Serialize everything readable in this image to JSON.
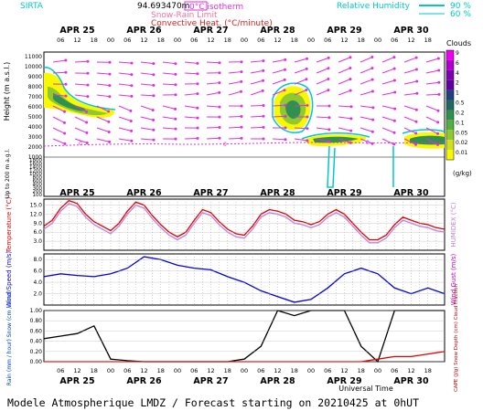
{
  "header": {
    "site": "SIRTA",
    "coords": "94.693470m",
    "legend_isotherm": "0°C isotherm",
    "legend_snow_rain": "Snow-Rain Limit",
    "legend_convective": "Convective Heat. (°C/minute)",
    "legend_rh": "Relative Humidity",
    "rh_90": "90 %",
    "rh_60": "60 %"
  },
  "days": [
    "APR 25",
    "APR 26",
    "APR 27",
    "APR 28",
    "APR 29",
    "APR 30"
  ],
  "hour_ticks": [
    "06",
    "12",
    "18",
    "00"
  ],
  "clouds_panel": {
    "ylabel": "Height (m a.s.l.)",
    "ylabel_sub": "Up to 200 m a.g.l.",
    "yticks_upper": [
      "11000",
      "10000",
      "9000",
      "8000",
      "7000",
      "6000",
      "5000",
      "4000",
      "3000",
      "2000",
      "1000"
    ],
    "yticks_lower": [
      "1800",
      "1600",
      "1400",
      "1200",
      "1000",
      "800",
      "600",
      "400",
      "300",
      "200",
      "100"
    ],
    "colorbar_title": "Clouds",
    "colorbar_ticks": [
      "9",
      "6",
      "4",
      "2",
      "1",
      "0.5",
      "0.2",
      "0.1",
      "0.05",
      "0.02",
      "0.01"
    ],
    "colorbar_colors": [
      "#f000f0",
      "#b000d0",
      "#8000b0",
      "#6000a0",
      "#204080",
      "#206860",
      "#309050",
      "#50b040",
      "#90c830",
      "#d0e020",
      "#f8f800"
    ],
    "colorbar_units": "(g/kg)"
  },
  "chart_data": [
    {
      "type": "line",
      "title": "",
      "ylabel": "Temperature (°C)",
      "ylabel_right": "HUMIDEX (°C)",
      "yticks": [
        "15.0",
        "12.0",
        "9.0",
        "6.0",
        "3.0"
      ],
      "ylim": [
        0,
        17
      ],
      "x_hours": [
        0,
        3,
        6,
        9,
        12,
        15,
        18,
        21,
        24,
        27,
        30,
        33,
        36,
        39,
        42,
        45,
        48,
        51,
        54,
        57,
        60,
        63,
        66,
        69,
        72,
        75,
        78,
        81,
        84,
        87,
        90,
        93,
        96,
        99,
        102,
        105,
        108,
        111,
        114,
        117,
        120,
        123,
        126,
        129,
        132,
        135,
        138,
        141,
        144
      ],
      "series": [
        {
          "color": "#e00000",
          "values": [
            8.0,
            10.0,
            14.0,
            16.5,
            15.5,
            12.0,
            9.5,
            8.0,
            6.5,
            9.0,
            13.0,
            16.0,
            15.0,
            11.5,
            8.5,
            6.0,
            4.5,
            6.0,
            10.0,
            13.5,
            12.5,
            9.5,
            7.0,
            5.5,
            5.0,
            8.0,
            12.0,
            13.5,
            13.0,
            12.0,
            10.0,
            9.5,
            8.5,
            9.5,
            12.0,
            13.5,
            12.0,
            9.0,
            6.0,
            3.5,
            3.5,
            5.0,
            8.5,
            11.0,
            10.0,
            9.0,
            8.5,
            7.5,
            7.0
          ]
        },
        {
          "color": "#c080e0",
          "values": [
            7.0,
            9.0,
            13.0,
            15.5,
            14.5,
            11.0,
            8.5,
            7.0,
            5.5,
            8.0,
            12.0,
            15.0,
            14.0,
            10.5,
            7.5,
            5.0,
            3.5,
            5.0,
            9.0,
            12.5,
            11.5,
            8.5,
            6.0,
            4.5,
            4.0,
            7.0,
            11.0,
            12.5,
            12.0,
            11.0,
            9.0,
            8.5,
            7.5,
            8.5,
            11.0,
            12.5,
            11.0,
            8.0,
            5.0,
            2.5,
            2.5,
            4.0,
            7.5,
            10.0,
            9.0,
            8.0,
            7.5,
            6.5,
            6.0
          ]
        }
      ]
    },
    {
      "type": "line",
      "title": "",
      "ylabel": "Wind Speed (m/s)",
      "ylabel_right": "Wind Gust (m/s)",
      "yticks": [
        "8.0",
        "6.0",
        "4.0",
        "2.0"
      ],
      "ylim": [
        0,
        9
      ],
      "x_hours": [
        0,
        6,
        12,
        18,
        24,
        30,
        36,
        42,
        48,
        54,
        60,
        66,
        72,
        78,
        84,
        90,
        96,
        102,
        108,
        114,
        120,
        126,
        132,
        138,
        144
      ],
      "series": [
        {
          "color": "#0000e0",
          "values": [
            5.0,
            5.5,
            5.2,
            5.0,
            5.5,
            6.5,
            8.5,
            8.0,
            7.0,
            6.5,
            6.2,
            5.0,
            4.0,
            2.5,
            1.5,
            0.5,
            1.0,
            3.0,
            5.5,
            6.5,
            5.5,
            3.0,
            2.0,
            3.0,
            2.0
          ]
        }
      ]
    },
    {
      "type": "line",
      "title": "",
      "ylabel": "Rain (mm / hour) Snow (cm / hour)",
      "ylabel_right": "CAPE (J/g) Snow Depth (cm) Cloud Fraction",
      "yticks": [
        "1.00",
        "0.80",
        "0.60",
        "0.40",
        "0.20",
        "0.00"
      ],
      "ylim": [
        0,
        1.0
      ],
      "x_hours": [
        0,
        6,
        12,
        18,
        24,
        30,
        36,
        42,
        48,
        54,
        60,
        66,
        72,
        78,
        84,
        90,
        96,
        102,
        108,
        114,
        120,
        126,
        132,
        138,
        144
      ],
      "series": [
        {
          "color": "#000000",
          "values": [
            0.45,
            0.5,
            0.55,
            0.7,
            0.05,
            0.02,
            0.0,
            0.0,
            0.0,
            0.0,
            0.0,
            0.0,
            0.05,
            0.3,
            1.0,
            0.9,
            1.0,
            1.0,
            1.0,
            0.3,
            0.0,
            1.0,
            1.0,
            1.0,
            1.0
          ]
        },
        {
          "color": "#e00000",
          "values": [
            0,
            0,
            0,
            0,
            0,
            0,
            0,
            0,
            0,
            0,
            0,
            0,
            0,
            0,
            0,
            0,
            0,
            0,
            0,
            0,
            0.05,
            0.1,
            0.1,
            0.15,
            0.2
          ]
        }
      ]
    }
  ],
  "xlabel": "Universal Time",
  "footer": "Modele Atmospherique LMDZ / Forecast starting on 20210425 at 0hUT"
}
